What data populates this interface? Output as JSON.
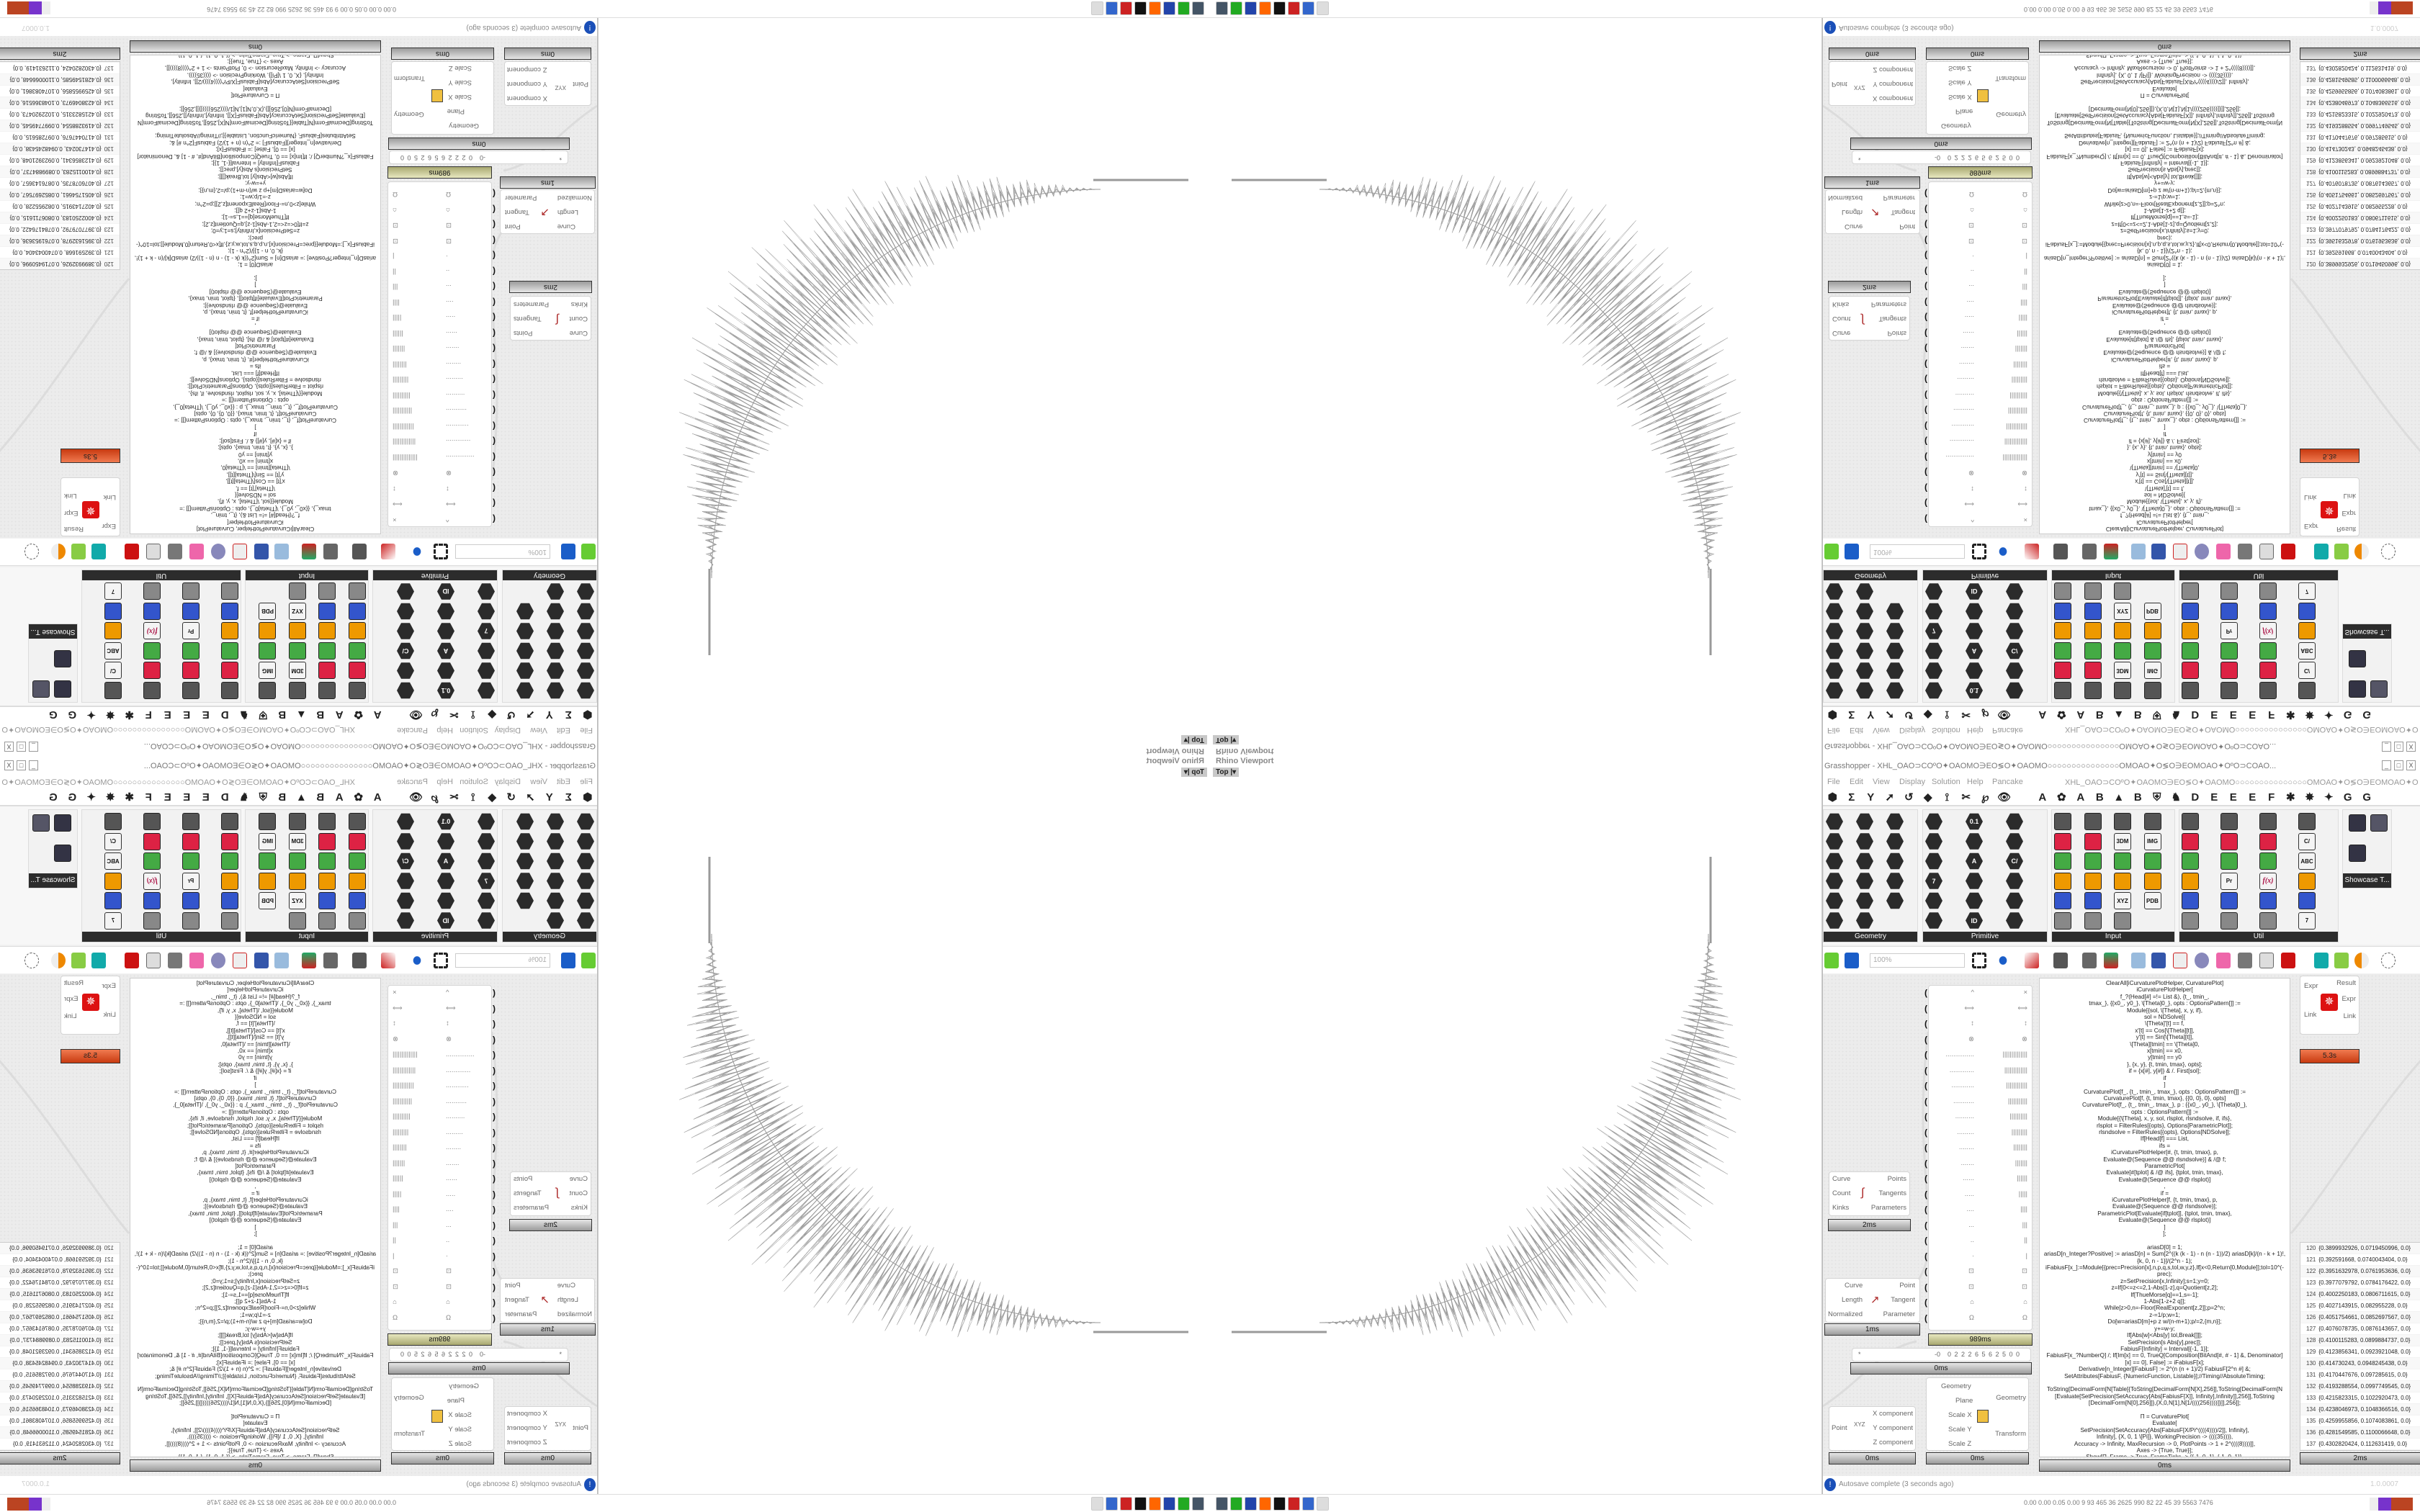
{
  "viewport": {
    "label": "Rhino Viewport",
    "view": "Top",
    "view_arrow": "▾"
  },
  "grasshopper": {
    "title": "Grasshopper - XHL_OAO⊃COºO✦OAOMO∋EO≶O✦OAOMO○○○○○○○○○○○○○○○OMOAO✦O≶O∋EOMOAO✦OºO⊃COAO...",
    "window_buttons": [
      "_",
      "□",
      "X"
    ],
    "menu": [
      "File",
      "Edit",
      "View",
      "Display",
      "Solution",
      "Help",
      "Pancake"
    ],
    "document_name": "XHL_OAO⊃COºO✦OAOMO∋EO≶O✦OAOMO○○○○○○○○○○○○○○○OMOAO✦O≶O∋EOMOAO✦OºO⊃COAO...",
    "tabs": [
      "⬢",
      "Σ",
      "Y",
      "➚",
      "↺",
      "◆",
      "⟟",
      "✂",
      "℘",
      "👁",
      "",
      "A",
      "✿",
      "A",
      "B",
      "▲",
      "B",
      "⛨",
      "♞",
      "D",
      "E",
      "E",
      "E",
      "F",
      "✱",
      "✸",
      "✦",
      "G",
      "G"
    ],
    "panels": [
      {
        "label": "Geometry",
        "icons": [
          "cube",
          "circle",
          "box",
          "surface",
          "x",
          "arc",
          "brep",
          "mesh",
          "vector",
          "spiral",
          "mesh-net",
          "line",
          "cross",
          "plane",
          "twisted-box",
          "field",
          "text"
        ]
      },
      {
        "label": "Primitive",
        "icons": [
          "number",
          "star",
          "matrix",
          "7",
          "graph",
          "timer",
          "0.1",
          "uc",
          "A",
          "domain",
          "pattern",
          "ID",
          "hex-grid",
          "tree",
          "C/",
          "sphere",
          "path",
          "branch"
        ]
      },
      {
        "label": "Input",
        "icons": [
          "import",
          "toggle",
          "button",
          "swatch",
          "color-wheel",
          "orbit",
          "graph-mapper",
          "knob",
          "gradient",
          "bezier",
          "stripes",
          "slider",
          "date-20",
          "3DM",
          "list",
          "clock",
          "XYZ",
          "panel",
          "color-picker",
          "IMG",
          "move",
          "paint",
          "PDB"
        ]
      },
      {
        "label": "Util",
        "icons": [
          "cherries",
          "magnet",
          "arrow",
          "bulb",
          "eye",
          "palette",
          "axes",
          "rec",
          "arrow-outline",
          "Pr",
          "flask",
          "tree",
          "pencil",
          "no-entry",
          "gauge",
          "f(x)",
          "ring",
          "remote",
          "no-entry-2",
          "C/",
          "ABC",
          "dial",
          "spiral",
          "7"
        ]
      }
    ],
    "showcase_label": "Showcase T...",
    "zoom": "100%",
    "components": {
      "expr": {
        "inputs": [
          "Expr",
          "Link"
        ],
        "outputs": [
          "Result",
          "Expr",
          "Link"
        ],
        "time": "5.3s"
      },
      "divide": {
        "inputs": [
          "Curve",
          "Count",
          "Kinks"
        ],
        "outputs": [
          "Points",
          "Tangents",
          "Parameters"
        ],
        "time": "2ms"
      },
      "eval": {
        "inputs": [
          "Curve",
          "Length",
          "Normalized"
        ],
        "outputs": [
          "Point",
          "Tangent",
          "Parameter"
        ],
        "time": "1ms"
      },
      "xyz": {
        "inputs": [
          "Point"
        ],
        "outputs": [
          "X component",
          "Y component",
          "Z component"
        ],
        "time": "0ms"
      },
      "scale": {
        "inputs": [
          "Geometry",
          "Plane",
          "Scale X",
          "Scale Y",
          "Scale Z"
        ],
        "outputs": [
          "Geometry",
          "Transform"
        ],
        "time": "0ms"
      },
      "symbols": {
        "left": [
          "^",
          "⟺",
          "↕",
          "⊗",
          "...............",
          ".............",
          "............",
          "...........",
          "..........",
          ".........",
          "........",
          ".......",
          "......",
          ".....",
          "....",
          "...",
          "..",
          "·",
          "⊡",
          "⊡",
          "⌂",
          "Ω"
        ],
        "right": [
          "×",
          "⟺",
          "↕",
          "⊗",
          "||||||||||||||",
          "|||||||||||||",
          "||||||||||||",
          "|||||||||||",
          "||||||||||",
          "|||||||||",
          "||||||||",
          "|||||||",
          "||||||",
          "|||||",
          "||||",
          "|||",
          "||",
          "|",
          "⊡",
          "⊡",
          "⌂",
          "Ω"
        ],
        "time": "989ms"
      },
      "slider": {
        "left": "*",
        "value": "-0",
        "digits": "0 2 2 2 6 5 6 2 5 0 0",
        "time": "0ms"
      },
      "code": {
        "time": "0ms",
        "lines": [
          "ClearAll[iCurvaturePlotHelper, CurvaturePlot]",
          "iCurvaturePlotHelper[",
          "f_?(Head[#] =!= List &), {t_, tmin_,",
          "tmax_}, {{x0_, y0_}, \\[Theta]0_}, opts : OptionsPattern[]] :=",
          "Module[{sol, \\[Theta], x, y, if},",
          "sol = NDSolve[{",
          "\\[Theta]'[t] == f,",
          "x'[t] == Cos[\\[Theta][t]],",
          "y'[t] == Sin[\\[Theta][t]],",
          "\\[Theta][tmin] == \\[Theta]0,",
          "x[tmin] == x0,",
          "y[tmin] == y0",
          "}, {x, y}, {t, tmin, tmax}, opts];",
          "if = {x[#], y[#]} & /. First[sol];",
          "if",
          "]",
          "CurvaturePlot[f_, {t_, tmin_, tmax_}, opts : OptionsPattern[]] :=",
          "CurvaturePlot[f, {t, tmin, tmax}, {{0, 0}, 0}, opts]",
          "CurvaturePlot[f_, {t_, tmin_, tmax_}, p : {{x0_, y0_}, \\[Theta]0_},",
          "opts : OptionsPattern[]] :=",
          "Module[{\\[Theta], x, y, sol, rlsplot, rlsndsolve, if, ifs},",
          "rlsplot = FilterRules[{opts}, Options[ParametricPlot]];",
          "rlsndsolve = FilterRules[{opts}, Options[NDSolve]];",
          "If[Head[f] === List,",
          "ifs =",
          "iCurvaturePlotHelper[#, {t, tmin, tmax}, p,",
          "Evaluate@(Sequence @@ rlsndsolve)] & /@ f;",
          "ParametricPlot[",
          "Evaluate[#[tplot] & /@ ifs], {tplot, tmin, tmax},",
          "Evaluate@(Sequence @@ rlsplot)]",
          ",",
          "if =",
          "iCurvaturePlotHelper[f, {t, tmin, tmax}, p,",
          "Evaluate@(Sequence @@ rlsndsolve)];",
          "ParametricPlot[Evaluate[if[tplot]], {tplot, tmin, tmax},",
          "Evaluate@(Sequence @@ rlsplot)]",
          "]",
          "];",
          "",
          "ariasD[0] = 1;",
          "ariasD[n_Integer?Positive] := ariasD[n] = Sum[2^((k (k - 1) - n (n - 1))/2) ariasD[k]/(n - k + 1)!,",
          "{k, 0, n - 1}]/(2^n - 1);",
          "iFabiusF[x_]:=Module[{prec=Precision[x],n,p,q,s,tol,w,y,z},If[x<0,Return[0,Module]];tol=10^(-",
          "prec);",
          "z=SetPrecision[x,Infinity];s=1;y=0;",
          "z=If[0<=z<=2,1-Abs[1-z],q=Quotient[z,2];",
          "If[ThueMorse[q]==1,s=-1];",
          "1-Abs[1-z+2 q]];",
          "While[z>0,n=-Floor[RealExponent[z,2]];p=2^n;",
          "z-=1/p;w=1;",
          "Do[w=ariasD[m]+p z w/(n-m+1);p/=2,{m,n}];",
          "y+=w-y;",
          "If[Abs[w]<Abs[y] tol,Break[]]];",
          "SetPrecision[s Abs[y],prec]];",
          "FabiusF[Infinity] = Interval[{-1, 1}];",
          "FabiusF[x_?NumberQ] /; If[Im[x] == 0, TrueQ[Composition[BitAnd[#, # - 1] &, Denominator]",
          "[x] == 0], False] := iFabiusF[x];",
          "Derivative[n_Integer][FabiusF] := 2^(n (n + 1)/2) FabiusF[2^n #] &;",
          "SetAttributes[FabiusF, {NumericFunction, Listable}];//Timing//AbsoluteTiming;",
          "",
          "ToString[DecimalForm[N[Table[{ToString[DecimalForm[N[X],256]],ToString[DecimalForm[N",
          "[Evaluate[SetPrecision[SetAccuracy[Abs[FabiusF[X]], Infinity],Infinity]],256]],ToString",
          "[DecimalForm[N[0],256]]},{X,0,N[1],N[1/((((256))))]}]],256]];",
          "",
          "П = CurvaturePlot[",
          "Evaluate[",
          "SetPrecision[SetAccuracy[Abs[FabiusF[X/Pi^((((4))))/2]], Infinity],",
          "Infinity], {X, 0, 1 \\[Pi]}, WorkingPrecision -> ((((35)))),",
          "Accuracy -> Infinity, MaxRecursion -> 0, PlotPoints -> 1 + 2^((((8))))]],",
          "Axes -> {True, True}];",
          "Show[П, Frame -> True, FrameTicks -> {{-1, 0, 1}, {-1, 0, 1}},",
          "PlotRange -> Full, AspectRatio -> 1];",
          "ФПФ = Flatten[Cases[П, Line[X__] -> X, Infinity], 1]",
          "Export[\"ФПФ\", ФПФ, \"CSV\"];ФПФ"
        ]
      },
      "values": {
        "time": "2ms",
        "rows": [
          {
            "i": "120",
            "v": "{0.3899932926, 0.0719450996, 0.0}"
          },
          {
            "i": "121",
            "v": "{0.392591668, 0.0740043404, 0.0}"
          },
          {
            "i": "122",
            "v": "{0.3951632978, 0.0761953636, 0.0}"
          },
          {
            "i": "123",
            "v": "{0.3977079792, 0.0784176422, 0.0}"
          },
          {
            "i": "124",
            "v": "{0.4002250183, 0.0806711615, 0.0}"
          },
          {
            "i": "125",
            "v": "{0.4027143915, 0.082955228, 0.0}"
          },
          {
            "i": "126",
            "v": "{0.4051754661, 0.0852697567, 0.0}"
          },
          {
            "i": "127",
            "v": "{0.4076078735, 0.0876143657, 0.0}"
          },
          {
            "i": "128",
            "v": "{0.4100115283, 0.0899884737, 0.0}"
          },
          {
            "i": "129",
            "v": "{0.4123856341, 0.0923921048, 0.0}"
          },
          {
            "i": "130",
            "v": "{0.414730243, 0.0948245438, 0.0}"
          },
          {
            "i": "131",
            "v": "{0.4170447676, 0.097285615, 0.0}"
          },
          {
            "i": "132",
            "v": "{0.4193288554, 0.0997749545, 0.0}"
          },
          {
            "i": "133",
            "v": "{0.4215823315, 0.1022920473, 0.0}"
          },
          {
            "i": "134",
            "v": "{0.4238046973, 0.1048366516, 0.0}"
          },
          {
            "i": "135",
            "v": "{0.4259955856, 0.1074083861, 0.0}"
          },
          {
            "i": "136",
            "v": "{0.4281549585, 0.1100066648, 0.0}"
          },
          {
            "i": "137",
            "v": "{0.4302820424, 0.112631419, 0.0}"
          }
        ]
      }
    },
    "status": "Autosave complete (3 seconds ago)",
    "version": "1.0.0007"
  },
  "taskbar": {
    "icons": [
      "remote-desktop",
      "terminal",
      "floppy-64",
      "firefox",
      "inkscape",
      "wolfram",
      "window",
      "cat"
    ],
    "perf": "0.00 0.00 0.05 0.00   9   93   465   36   2625  990   82   22   45   39   5563 7476"
  },
  "colors": {
    "accent_warn": "#d8502a",
    "panel_dark": "#2c2c2c",
    "canvas": "#ececec",
    "fractal": "#9a9a9a"
  }
}
